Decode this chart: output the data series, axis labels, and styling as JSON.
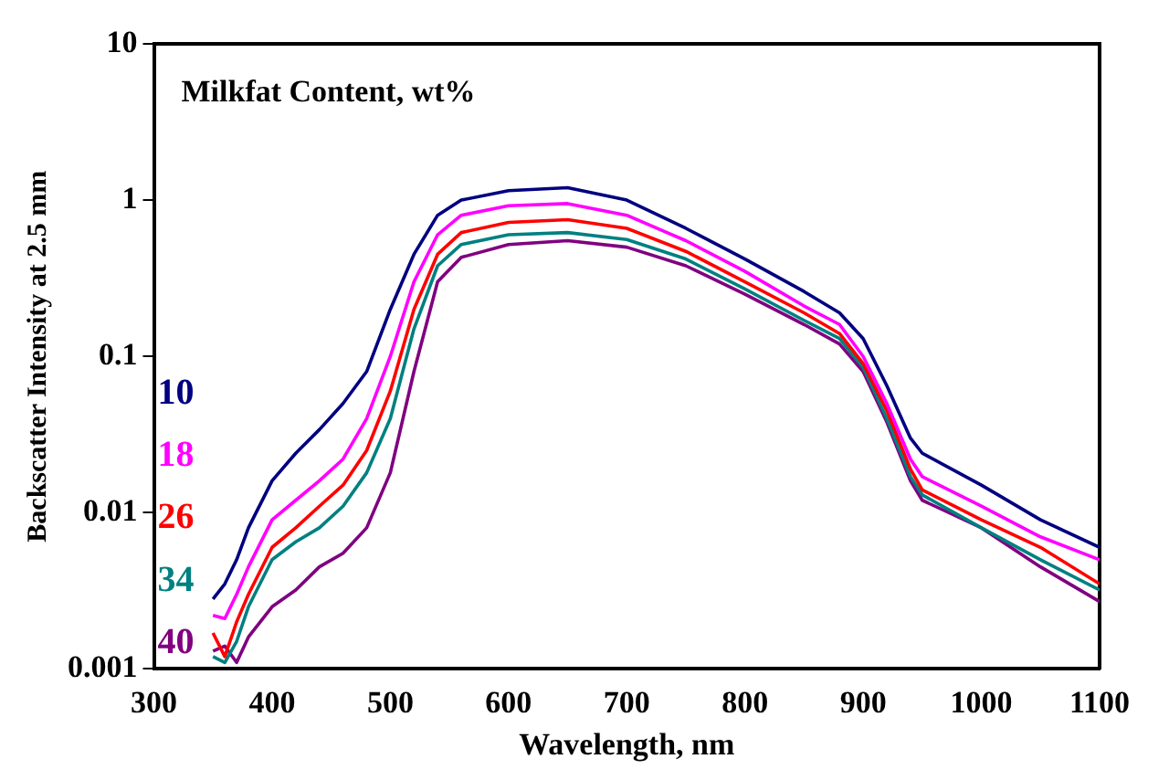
{
  "chart_data": {
    "type": "line",
    "legend_title": "Milkfat Content, wt%",
    "xlabel": "Wavelength, nm",
    "ylabel": "Backscatter Intensity at 2.5 mm",
    "x": [
      350,
      360,
      370,
      380,
      400,
      420,
      440,
      460,
      480,
      500,
      520,
      540,
      560,
      600,
      650,
      700,
      750,
      800,
      850,
      880,
      900,
      920,
      940,
      950,
      1000,
      1050,
      1100
    ],
    "series": [
      {
        "name": "10",
        "color": "#000080",
        "values": [
          0.0028,
          0.0035,
          0.005,
          0.008,
          0.016,
          0.024,
          0.034,
          0.05,
          0.08,
          0.2,
          0.45,
          0.8,
          1.0,
          1.15,
          1.2,
          1.0,
          0.66,
          0.42,
          0.26,
          0.19,
          0.13,
          0.065,
          0.03,
          0.024,
          0.015,
          0.009,
          0.006
        ]
      },
      {
        "name": "18",
        "color": "#ff00ff",
        "values": [
          0.0022,
          0.0021,
          0.003,
          0.0045,
          0.009,
          0.012,
          0.016,
          0.022,
          0.04,
          0.1,
          0.3,
          0.6,
          0.8,
          0.92,
          0.95,
          0.8,
          0.55,
          0.35,
          0.21,
          0.16,
          0.1,
          0.05,
          0.022,
          0.017,
          0.011,
          0.007,
          0.005
        ]
      },
      {
        "name": "26",
        "color": "#ff0000",
        "values": [
          0.0017,
          0.0012,
          0.002,
          0.003,
          0.006,
          0.008,
          0.011,
          0.015,
          0.025,
          0.06,
          0.2,
          0.45,
          0.62,
          0.72,
          0.75,
          0.66,
          0.47,
          0.3,
          0.19,
          0.14,
          0.09,
          0.045,
          0.019,
          0.014,
          0.009,
          0.006,
          0.0035
        ]
      },
      {
        "name": "34",
        "color": "#008080",
        "values": [
          0.0012,
          0.0011,
          0.0015,
          0.0025,
          0.005,
          0.0065,
          0.008,
          0.011,
          0.018,
          0.04,
          0.15,
          0.38,
          0.52,
          0.6,
          0.62,
          0.56,
          0.42,
          0.27,
          0.17,
          0.13,
          0.085,
          0.04,
          0.017,
          0.013,
          0.008,
          0.005,
          0.0032
        ]
      },
      {
        "name": "40",
        "color": "#800080",
        "values": [
          0.0013,
          0.0014,
          0.0011,
          0.0016,
          0.0025,
          0.0032,
          0.0045,
          0.0055,
          0.008,
          0.018,
          0.08,
          0.3,
          0.43,
          0.52,
          0.55,
          0.5,
          0.38,
          0.25,
          0.16,
          0.12,
          0.08,
          0.038,
          0.016,
          0.012,
          0.008,
          0.0045,
          0.0027
        ]
      }
    ],
    "xlim": [
      300,
      1100
    ],
    "xticks": [
      300,
      400,
      500,
      600,
      700,
      800,
      900,
      1000,
      1100
    ],
    "ylim": [
      0.001,
      10
    ],
    "yticks": [
      0.001,
      0.01,
      0.1,
      1,
      10
    ],
    "log": "y",
    "grid": false,
    "legend": "left",
    "marker": "none",
    "line_style": "solid"
  }
}
